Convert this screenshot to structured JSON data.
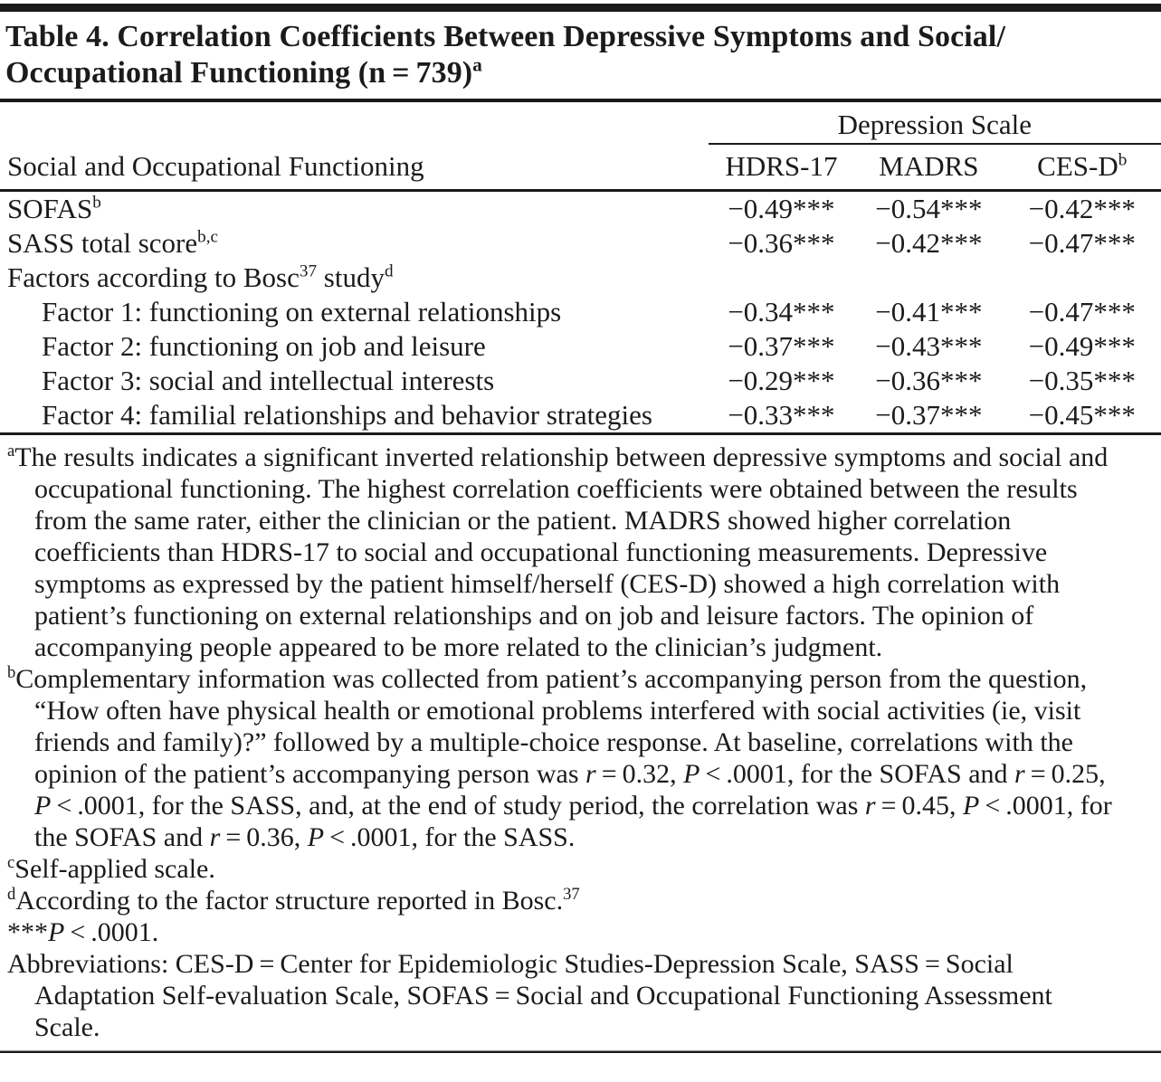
{
  "title": {
    "segments": [
      {
        "t": "Table 4. Correlation Coefficients Between Depressive Symptoms and Social/"
      },
      {
        "s": "br"
      },
      {
        "t": "Occupational Functioning (n = 739)"
      },
      {
        "t": "a",
        "s": "sup"
      }
    ]
  },
  "table": {
    "spanner": "Depression Scale",
    "stub_header": "Social and Occupational Functioning",
    "col_headers": [
      {
        "segments": [
          {
            "t": "HDRS-17"
          }
        ]
      },
      {
        "segments": [
          {
            "t": "MADRS"
          }
        ]
      },
      {
        "segments": [
          {
            "t": "CES-D"
          },
          {
            "t": "b",
            "s": "sup"
          }
        ]
      }
    ],
    "rows": [
      {
        "indent": false,
        "label": {
          "segments": [
            {
              "t": "SOFAS"
            },
            {
              "t": "b",
              "s": "sup"
            }
          ]
        },
        "values": [
          "−0.49***",
          "−0.54***",
          "−0.42***"
        ]
      },
      {
        "indent": false,
        "label": {
          "segments": [
            {
              "t": "SASS total score"
            },
            {
              "t": "b,c",
              "s": "sup"
            }
          ]
        },
        "values": [
          "−0.36***",
          "−0.42***",
          "−0.47***"
        ]
      },
      {
        "indent": false,
        "label": {
          "segments": [
            {
              "t": "Factors according to Bosc"
            },
            {
              "t": "37",
              "s": "sup"
            },
            {
              "t": " study"
            },
            {
              "t": "d",
              "s": "sup"
            }
          ]
        },
        "values": [
          "",
          "",
          ""
        ]
      },
      {
        "indent": true,
        "label": {
          "segments": [
            {
              "t": "Factor 1: functioning on external relationships"
            }
          ]
        },
        "values": [
          "−0.34***",
          "−0.41***",
          "−0.47***"
        ]
      },
      {
        "indent": true,
        "label": {
          "segments": [
            {
              "t": "Factor 2: functioning on job and leisure"
            }
          ]
        },
        "values": [
          "−0.37***",
          "−0.43***",
          "−0.49***"
        ]
      },
      {
        "indent": true,
        "label": {
          "segments": [
            {
              "t": "Factor 3: social and intellectual interests"
            }
          ]
        },
        "values": [
          "−0.29***",
          "−0.36***",
          "−0.35***"
        ]
      },
      {
        "indent": true,
        "label": {
          "segments": [
            {
              "t": "Factor 4: familial relationships and behavior strategies"
            }
          ]
        },
        "values": [
          "−0.33***",
          "−0.37***",
          "−0.45***"
        ]
      }
    ]
  },
  "footnotes": [
    {
      "id": "a",
      "segments": [
        {
          "t": "a",
          "s": "sup"
        },
        {
          "t": "The results indicates a significant inverted relationship between depressive symptoms and social and occupational functioning. The highest correlation coefficients were obtained between the results from the same rater, either the clinician or the patient. MADRS showed higher correlation coefficients than HDRS-17 to social and occupational functioning measurements. Depressive symptoms as expressed by the patient himself/herself (CES-D) showed a high correlation with patient’s functioning on external relationships and on job and leisure factors. The opinion of accompanying people appeared to be more related to the clinician’s judgment."
        }
      ]
    },
    {
      "id": "b",
      "segments": [
        {
          "t": "b",
          "s": "sup"
        },
        {
          "t": "Complementary information was collected from patient’s accompanying person from the question, “How often have physical health or emotional problems interfered with social activities (ie, visit friends and family)?” followed by a multiple-choice response. At baseline, correlations with the opinion of the patient’s accompanying person was "
        },
        {
          "t": "r",
          "s": "i"
        },
        {
          "t": " = 0.32, "
        },
        {
          "t": "P",
          "s": "i"
        },
        {
          "t": " < .0001, for the SOFAS and "
        },
        {
          "t": "r",
          "s": "i"
        },
        {
          "t": " = 0.25, "
        },
        {
          "t": "P",
          "s": "i"
        },
        {
          "t": " < .0001, for the SASS, and, at the end of study period, the correlation was "
        },
        {
          "t": "r",
          "s": "i"
        },
        {
          "t": " = 0.45, "
        },
        {
          "t": "P",
          "s": "i"
        },
        {
          "t": " < .0001, for the SOFAS and "
        },
        {
          "t": "r",
          "s": "i"
        },
        {
          "t": " = 0.36, "
        },
        {
          "t": "P",
          "s": "i"
        },
        {
          "t": " < .0001, for the SASS."
        }
      ]
    },
    {
      "id": "c",
      "segments": [
        {
          "t": "c",
          "s": "sup"
        },
        {
          "t": "Self-applied scale."
        }
      ]
    },
    {
      "id": "d",
      "segments": [
        {
          "t": "d",
          "s": "sup"
        },
        {
          "t": "According to the factor structure reported in Bosc."
        },
        {
          "t": "37",
          "s": "sup"
        }
      ]
    },
    {
      "id": "stars",
      "segments": [
        {
          "t": "***"
        },
        {
          "t": "P",
          "s": "i"
        },
        {
          "t": " < .0001."
        }
      ]
    },
    {
      "id": "abbreviations",
      "segments": [
        {
          "t": "Abbreviations: CES-D = Center for Epidemiologic Studies-Depression Scale, SASS = Social Adaptation Self-evaluation Scale, SOFAS = Social and Occupational Functioning Assessment Scale."
        }
      ]
    }
  ]
}
